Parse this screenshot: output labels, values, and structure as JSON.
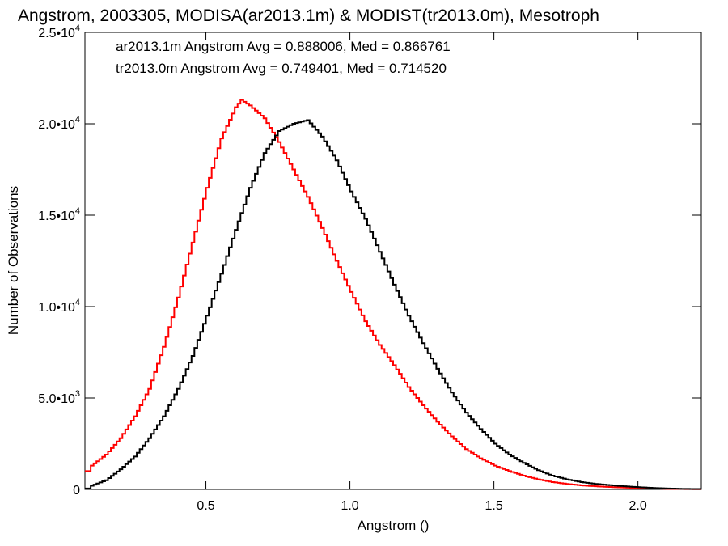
{
  "chart_data": {
    "type": "line",
    "title": "Angstrom, 2003305, MODISA(ar2013.1m) & MODIST(tr2013.0m), Mesotroph",
    "xlabel": "Angstrom ()",
    "ylabel": "Number of Observations",
    "xlim": [
      0.08,
      2.22
    ],
    "ylim": [
      0,
      25000
    ],
    "x_ticks": [
      0.5,
      1.0,
      1.5,
      2.0
    ],
    "x_tick_labels": [
      "0.5",
      "1.0",
      "1.5",
      "2.0"
    ],
    "y_ticks": [
      {
        "value": 0,
        "mantissa": "0",
        "exponent": ""
      },
      {
        "value": 5000,
        "mantissa": "5.0•10",
        "exponent": "3"
      },
      {
        "value": 10000,
        "mantissa": "1.0•10",
        "exponent": "4"
      },
      {
        "value": 15000,
        "mantissa": "1.5•10",
        "exponent": "4"
      },
      {
        "value": 20000,
        "mantissa": "2.0•10",
        "exponent": "4"
      },
      {
        "value": 25000,
        "mantissa": "2.5•10",
        "exponent": "4"
      }
    ],
    "style": "step",
    "grid": false,
    "legend_placement": "top-left",
    "series": [
      {
        "name": "ar2013.1m",
        "legend_text": "ar2013.1m Angstrom Avg = 0.888006, Med = 0.866761",
        "color": "#000000",
        "x": [
          0.09,
          0.1,
          0.15,
          0.2,
          0.25,
          0.3,
          0.35,
          0.4,
          0.45,
          0.5,
          0.55,
          0.6,
          0.65,
          0.7,
          0.75,
          0.8,
          0.85,
          0.9,
          0.95,
          1.0,
          1.05,
          1.1,
          1.15,
          1.2,
          1.25,
          1.3,
          1.35,
          1.4,
          1.45,
          1.5,
          1.55,
          1.6,
          1.65,
          1.7,
          1.75,
          1.8,
          1.85,
          1.9,
          1.95,
          2.0,
          2.05,
          2.1,
          2.15,
          2.2
        ],
        "y": [
          50,
          200,
          500,
          1100,
          1800,
          2800,
          4000,
          5500,
          7300,
          9500,
          11800,
          14200,
          16500,
          18400,
          19600,
          20000,
          20200,
          19300,
          18000,
          16300,
          14800,
          13000,
          11200,
          9500,
          8000,
          6600,
          5300,
          4200,
          3300,
          2500,
          1900,
          1450,
          1050,
          750,
          550,
          400,
          300,
          230,
          170,
          120,
          80,
          50,
          30,
          20
        ]
      },
      {
        "name": "tr2013.0m",
        "legend_text": "tr2013.0m Angstrom Avg = 0.749401, Med = 0.714520",
        "color": "#ff0000",
        "x": [
          0.09,
          0.1,
          0.15,
          0.2,
          0.25,
          0.3,
          0.35,
          0.4,
          0.45,
          0.5,
          0.55,
          0.6,
          0.62,
          0.65,
          0.7,
          0.75,
          0.8,
          0.85,
          0.9,
          0.95,
          1.0,
          1.05,
          1.1,
          1.15,
          1.2,
          1.25,
          1.3,
          1.35,
          1.4,
          1.45,
          1.5,
          1.55,
          1.6,
          1.65,
          1.7,
          1.75,
          1.8,
          1.85,
          1.9,
          1.95,
          2.0,
          2.05,
          2.1,
          2.15,
          2.2
        ],
        "y": [
          1000,
          1300,
          1900,
          2800,
          4000,
          5500,
          7800,
          10500,
          13500,
          16500,
          19200,
          20900,
          21300,
          21000,
          20300,
          19000,
          17500,
          16000,
          14300,
          12500,
          10800,
          9200,
          7900,
          6800,
          5600,
          4600,
          3700,
          2900,
          2200,
          1700,
          1300,
          1000,
          750,
          550,
          400,
          300,
          220,
          170,
          130,
          100,
          70,
          50,
          30,
          20,
          10
        ]
      }
    ]
  }
}
